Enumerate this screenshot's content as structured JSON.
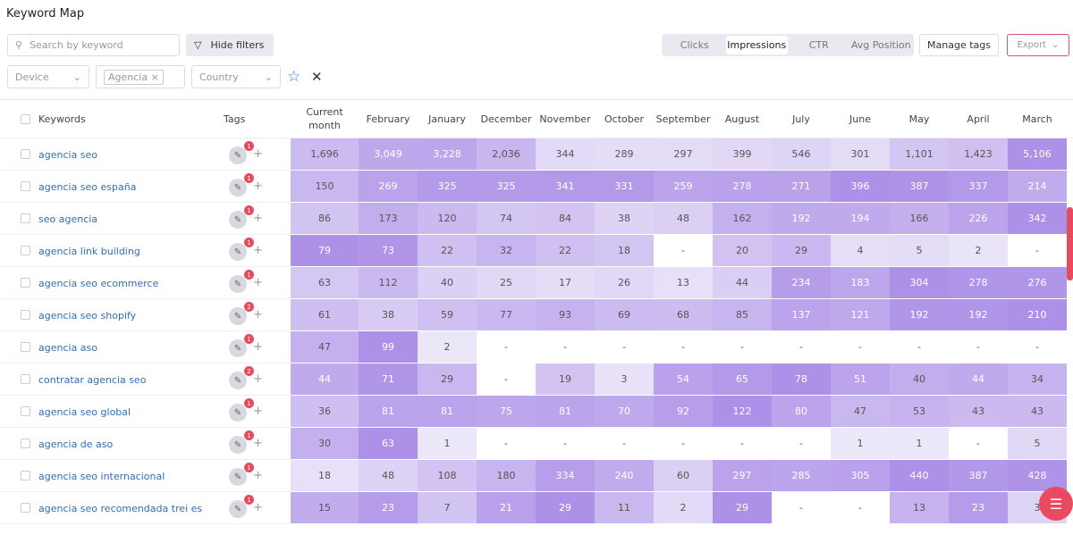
{
  "header": {
    "title": "Keyword Map"
  },
  "toolbar": {
    "search_placeholder": "Search by keyword",
    "hide_filters": "Hide filters",
    "metric_tabs": [
      "Clicks",
      "Impressions",
      "CTR",
      "Avg Position"
    ],
    "active_tab": "Impressions",
    "manage_tags": "Manage tags",
    "export": "Export"
  },
  "filters": {
    "device": "Device",
    "chip": "Agencia",
    "country": "Country"
  },
  "table": {
    "columns": [
      "Keywords",
      "Tags",
      "Current month",
      "February",
      "January",
      "December",
      "November",
      "October",
      "September",
      "August",
      "July",
      "June",
      "May",
      "April",
      "March"
    ],
    "rows": [
      {
        "keyword": "agencia seo",
        "tag_count": "1",
        "cells": [
          "1,696",
          "3,049",
          "3,228",
          "2,036",
          "344",
          "289",
          "297",
          "399",
          "546",
          "301",
          "1,101",
          "1,423",
          "5,106"
        ]
      },
      {
        "keyword": "agencia seo españa",
        "tag_count": "1",
        "cells": [
          "150",
          "269",
          "325",
          "325",
          "341",
          "331",
          "259",
          "278",
          "271",
          "396",
          "387",
          "337",
          "214"
        ]
      },
      {
        "keyword": "seo agencia",
        "tag_count": "1",
        "cells": [
          "86",
          "173",
          "120",
          "74",
          "84",
          "38",
          "48",
          "162",
          "192",
          "194",
          "166",
          "226",
          "342"
        ]
      },
      {
        "keyword": "agencia link building",
        "tag_count": "1",
        "cells": [
          "79",
          "73",
          "22",
          "32",
          "22",
          "18",
          "-",
          "20",
          "29",
          "4",
          "5",
          "2",
          "-"
        ]
      },
      {
        "keyword": "agencia seo ecommerce",
        "tag_count": "1",
        "cells": [
          "63",
          "112",
          "40",
          "25",
          "17",
          "26",
          "13",
          "44",
          "234",
          "183",
          "304",
          "278",
          "276"
        ]
      },
      {
        "keyword": "agencia seo shopify",
        "tag_count": "2",
        "cells": [
          "61",
          "38",
          "59",
          "77",
          "93",
          "69",
          "68",
          "85",
          "137",
          "121",
          "192",
          "192",
          "210"
        ]
      },
      {
        "keyword": "agencia aso",
        "tag_count": "1",
        "cells": [
          "47",
          "99",
          "2",
          "-",
          "-",
          "-",
          "-",
          "-",
          "-",
          "-",
          "-",
          "-",
          "-"
        ]
      },
      {
        "keyword": "contratar agencia seo",
        "tag_count": "2",
        "cells": [
          "44",
          "71",
          "29",
          "-",
          "19",
          "3",
          "54",
          "65",
          "78",
          "51",
          "40",
          "44",
          "34"
        ]
      },
      {
        "keyword": "agencia seo global",
        "tag_count": "1",
        "cells": [
          "36",
          "81",
          "81",
          "75",
          "81",
          "70",
          "92",
          "122",
          "80",
          "47",
          "53",
          "43",
          "43"
        ]
      },
      {
        "keyword": "agencia de aso",
        "tag_count": "1",
        "cells": [
          "30",
          "63",
          "1",
          "-",
          "-",
          "-",
          "-",
          "-",
          "-",
          "1",
          "1",
          "-",
          "5"
        ]
      },
      {
        "keyword": "agencia seo internacional",
        "tag_count": "1",
        "cells": [
          "18",
          "48",
          "108",
          "180",
          "334",
          "240",
          "60",
          "297",
          "285",
          "305",
          "440",
          "387",
          "428"
        ]
      },
      {
        "keyword": "agencia seo recomendada trei es",
        "tag_count": "1",
        "cells": [
          "15",
          "23",
          "7",
          "21",
          "29",
          "11",
          "2",
          "29",
          "-",
          "-",
          "13",
          "23",
          "3"
        ]
      }
    ]
  }
}
